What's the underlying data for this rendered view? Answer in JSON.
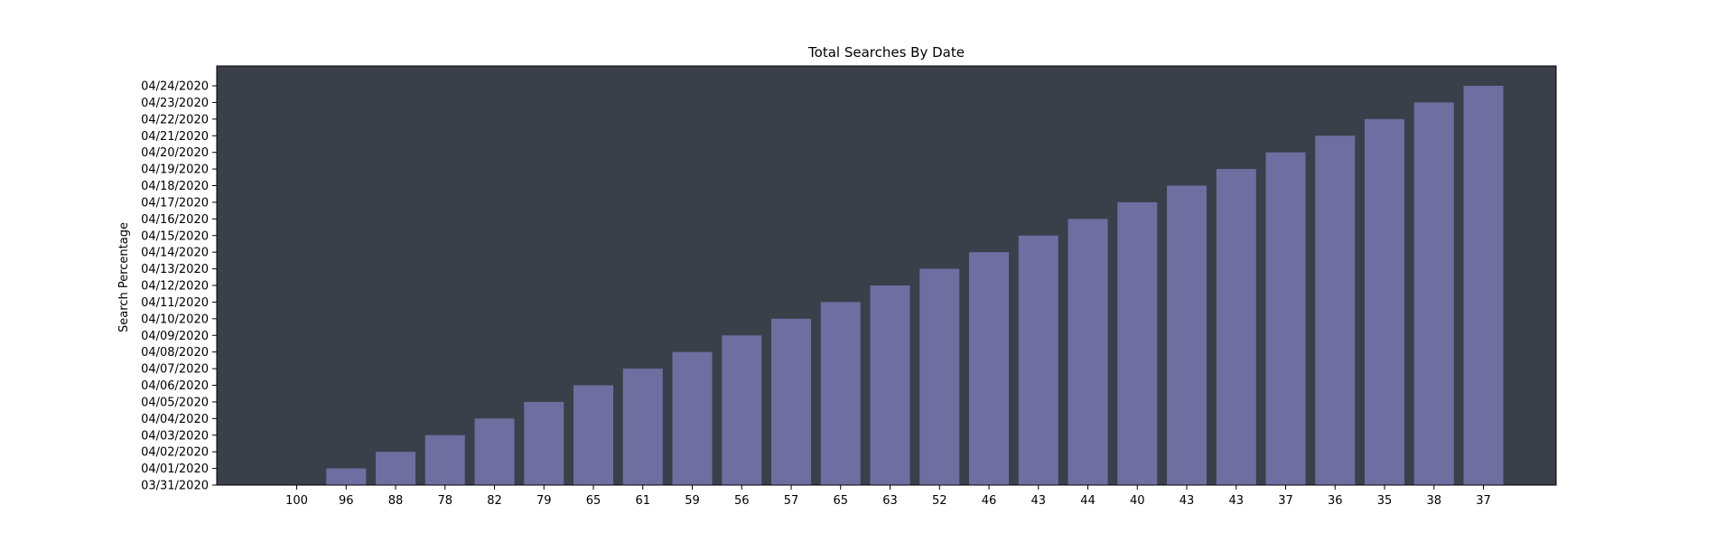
{
  "chart_data": {
    "type": "bar",
    "title": "Total Searches By Date",
    "xlabel": "",
    "ylabel": "Search Percentage",
    "categories": [
      "100",
      "96",
      "88",
      "78",
      "82",
      "79",
      "65",
      "61",
      "59",
      "56",
      "57",
      "65",
      "63",
      "52",
      "46",
      "43",
      "44",
      "40",
      "43",
      "43",
      "37",
      "36",
      "35",
      "38",
      "37"
    ],
    "values": [
      "03/31/2020",
      "04/01/2020",
      "04/02/2020",
      "04/03/2020",
      "04/04/2020",
      "04/05/2020",
      "04/06/2020",
      "04/07/2020",
      "04/08/2020",
      "04/09/2020",
      "04/10/2020",
      "04/11/2020",
      "04/12/2020",
      "04/13/2020",
      "04/14/2020",
      "04/15/2020",
      "04/16/2020",
      "04/17/2020",
      "04/18/2020",
      "04/19/2020",
      "04/20/2020",
      "04/21/2020",
      "04/22/2020",
      "04/23/2020",
      "04/24/2020"
    ],
    "y_ticks": [
      "03/31/2020",
      "04/01/2020",
      "04/02/2020",
      "04/03/2020",
      "04/04/2020",
      "04/05/2020",
      "04/06/2020",
      "04/07/2020",
      "04/08/2020",
      "04/09/2020",
      "04/10/2020",
      "04/11/2020",
      "04/12/2020",
      "04/13/2020",
      "04/14/2020",
      "04/15/2020",
      "04/16/2020",
      "04/17/2020",
      "04/18/2020",
      "04/19/2020",
      "04/20/2020",
      "04/21/2020",
      "04/22/2020",
      "04/23/2020",
      "04/24/2020"
    ],
    "ylim": [
      "03/31/2020",
      "04/24/2020"
    ],
    "grid": false,
    "colors": {
      "plot_background": "#3a3f4a",
      "bar": "#6e6fa0",
      "axis": "#000000"
    }
  }
}
